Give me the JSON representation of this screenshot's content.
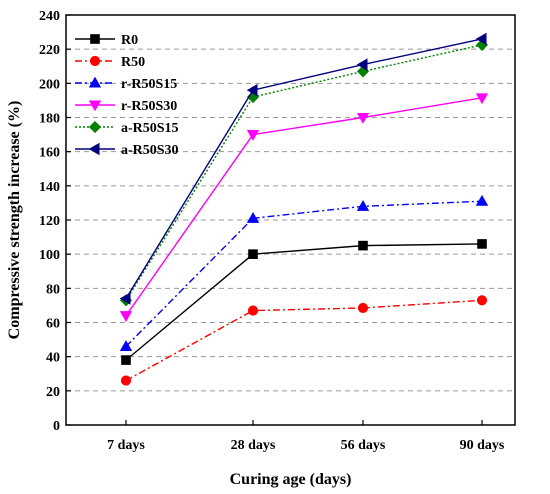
{
  "chart_data": {
    "type": "line",
    "title": "",
    "xlabel": "Curing age (days)",
    "ylabel": "Compressive strength increase (%)",
    "categories": [
      "7 days",
      "28 days",
      "56 days",
      "90 days"
    ],
    "ylim": [
      0,
      240
    ],
    "yticks": [
      0,
      20,
      40,
      60,
      80,
      100,
      120,
      140,
      160,
      180,
      200,
      220,
      240
    ],
    "grid": "horizontal dashed",
    "legend_position": "top-left",
    "series": [
      {
        "name": "R0",
        "values": [
          38,
          100,
          105,
          106
        ],
        "color": "#000000",
        "marker": "square",
        "line": "solid"
      },
      {
        "name": "R50",
        "values": [
          26,
          67,
          68.5,
          73
        ],
        "color": "#ff0000",
        "marker": "circle",
        "line": "dashdot"
      },
      {
        "name": "r-R50S15",
        "values": [
          46,
          121,
          128,
          131
        ],
        "color": "#0000ff",
        "marker": "triangle-up",
        "line": "dashdot"
      },
      {
        "name": "r-R50S30",
        "values": [
          64,
          170,
          180,
          191.5
        ],
        "color": "#ff00ff",
        "marker": "triangle-down",
        "line": "solid"
      },
      {
        "name": "a-R50S15",
        "values": [
          73,
          192,
          207,
          222.5
        ],
        "color": "#008000",
        "marker": "diamond",
        "line": "dotted"
      },
      {
        "name": "a-R50S30",
        "values": [
          74,
          196,
          211,
          226
        ],
        "color": "#000080",
        "marker": "triangle-left",
        "line": "solid"
      }
    ]
  }
}
